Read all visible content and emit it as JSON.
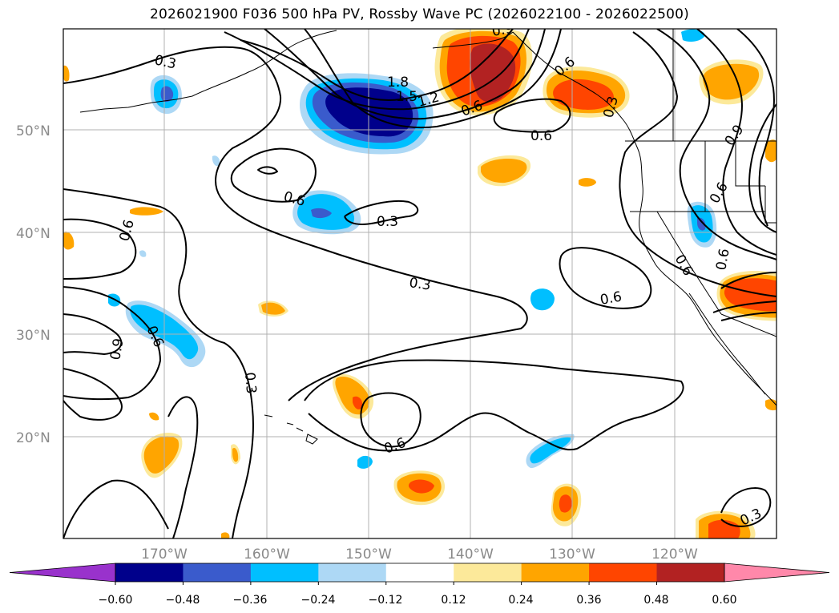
{
  "title": "2026021900 F036 500 hPa PV, Rossby Wave PC (2026022100 - 2026022500)",
  "map": {
    "lat_labels": [
      "50°N",
      "40°N",
      "30°N",
      "20°N"
    ],
    "lon_labels": [
      "170°W",
      "160°W",
      "150°W",
      "140°W",
      "130°W",
      "120°W"
    ]
  },
  "contour_labels": [
    "0.3",
    "1.8",
    "1.5",
    "1.2",
    "0.6",
    "0.6",
    "0.6",
    "0.3",
    "0.3",
    "0.6",
    "0.3",
    "0.6",
    "0.6",
    "0.3",
    "0.6",
    "0.9",
    "0.6",
    "0.9",
    "0.6",
    "0.3",
    "0.9",
    "0.6",
    "0.6"
  ],
  "colorbar": {
    "tick_labels": [
      "−0.60",
      "−0.48",
      "−0.36",
      "−0.24",
      "−0.12",
      "0.12",
      "0.24",
      "0.36",
      "0.48",
      "0.60"
    ],
    "colors": [
      "#9932cc",
      "#00008b",
      "#3a5bcc",
      "#00bfff",
      "#add8f5",
      "#ffffff",
      "#fce99a",
      "#ffa500",
      "#ff4500",
      "#b22222",
      "#ff88aa"
    ]
  }
}
